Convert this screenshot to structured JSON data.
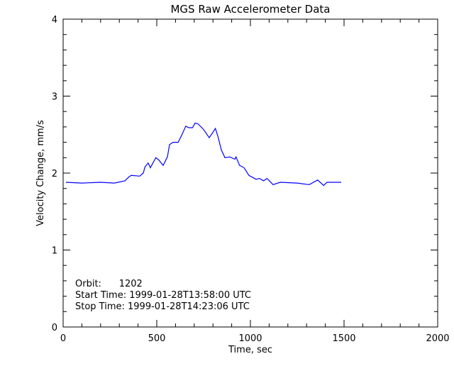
{
  "chart_data": {
    "type": "line",
    "title": "MGS Raw Accelerometer Data",
    "xlabel": "Time, sec",
    "ylabel": "Velocity Change, mm/s",
    "xlim": [
      0,
      2000
    ],
    "ylim": [
      0,
      4
    ],
    "xticks": [
      "0",
      "500",
      "1000",
      "1500",
      "2000"
    ],
    "yticks": [
      "0",
      "1",
      "2",
      "3",
      "4"
    ],
    "grid": false,
    "line_color": "#0000ff",
    "annotations": [
      "Orbit:      1202",
      "Start Time: 1999-01-28T13:58:00 UTC",
      "Stop Time: 1999-01-28T14:23:06 UTC"
    ],
    "series": [
      {
        "x": [
          15,
          100,
          200,
          273,
          330,
          351,
          364,
          409,
          428,
          437,
          454,
          466,
          495,
          511,
          534,
          557,
          568,
          587,
          614,
          633,
          655,
          670,
          691,
          705,
          720,
          749,
          780,
          800,
          813,
          826,
          845,
          864,
          890,
          917,
          923,
          942,
          966,
          992,
          1030,
          1049,
          1070,
          1089,
          1121,
          1159,
          1250,
          1314,
          1359,
          1391,
          1409,
          1485
        ],
        "y": [
          1.88,
          1.87,
          1.88,
          1.87,
          1.9,
          1.95,
          1.97,
          1.96,
          2.0,
          2.08,
          2.13,
          2.07,
          2.2,
          2.17,
          2.1,
          2.21,
          2.37,
          2.4,
          2.4,
          2.49,
          2.61,
          2.59,
          2.59,
          2.65,
          2.64,
          2.57,
          2.46,
          2.53,
          2.58,
          2.48,
          2.3,
          2.2,
          2.21,
          2.18,
          2.21,
          2.1,
          2.07,
          1.97,
          1.92,
          1.93,
          1.9,
          1.93,
          1.85,
          1.88,
          1.87,
          1.85,
          1.91,
          1.84,
          1.88,
          1.88
        ]
      }
    ]
  }
}
